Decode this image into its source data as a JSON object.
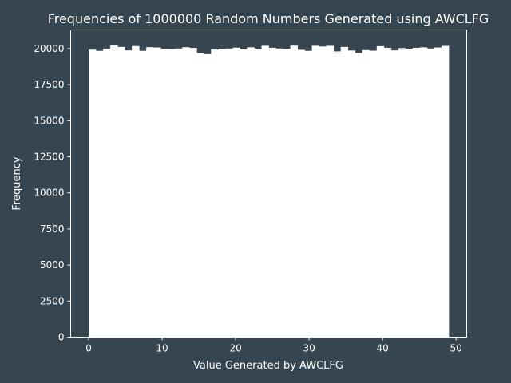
{
  "chart_data": {
    "type": "bar",
    "title": "Frequencies of 1000000 Random Numbers Generated using AWCLFG",
    "xlabel": "Value Generated by AWCLFG",
    "ylabel": "Frequency",
    "xlim": [
      -2.45,
      51.45
    ],
    "ylim": [
      0,
      21300
    ],
    "xticks": [
      0,
      10,
      20,
      30,
      40,
      50
    ],
    "yticks": [
      0,
      2500,
      5000,
      7500,
      10000,
      12500,
      15000,
      17500,
      20000
    ],
    "grid": false,
    "legend": "none",
    "bin_edges_start": 0,
    "bin_width": 0.98,
    "bin_count": 50,
    "values": [
      19930,
      19850,
      19980,
      20220,
      20120,
      19880,
      20180,
      19850,
      20100,
      20080,
      20000,
      19990,
      20010,
      20100,
      20050,
      19700,
      19620,
      19940,
      19990,
      20010,
      20070,
      19950,
      20090,
      20000,
      20200,
      20060,
      20010,
      19990,
      20210,
      19920,
      19850,
      20200,
      20150,
      20200,
      19810,
      20120,
      19870,
      19700,
      19900,
      19860,
      20170,
      20060,
      19880,
      20040,
      19990,
      20060,
      20090,
      20010,
      20080,
      20190
    ]
  },
  "colors": {
    "background": "#36454f",
    "bars": "#ffffff",
    "axes": "#ffffff",
    "text": "#ffffff"
  }
}
